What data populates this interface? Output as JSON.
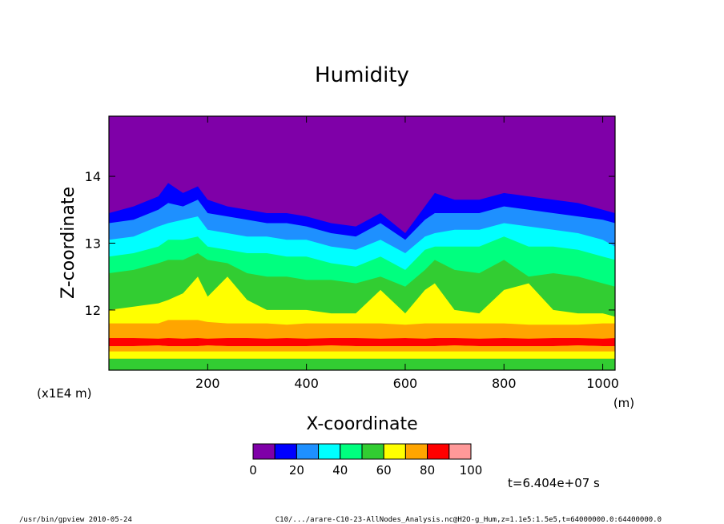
{
  "chart_data": {
    "type": "area",
    "title": "Humidity",
    "xlabel": "X-coordinate",
    "ylabel": "Z-coordinate",
    "x_unit": "(m)",
    "y_scale_note": "(x1E4 m)",
    "xlim": [
      0,
      1025
    ],
    "ylim": [
      11.1,
      14.9
    ],
    "x_ticks": [
      200,
      400,
      600,
      800,
      1000
    ],
    "y_ticks": [
      12,
      13,
      14
    ],
    "x_tick_labels": [
      "200",
      "400",
      "600",
      "800",
      "1000"
    ],
    "y_tick_labels": [
      "12",
      "13",
      "14"
    ],
    "colorbar": {
      "levels": [
        0,
        10,
        20,
        30,
        40,
        50,
        60,
        70,
        80,
        90,
        100
      ],
      "tick_labels": [
        "0",
        "20",
        "40",
        "60",
        "80",
        "100"
      ],
      "tick_values": [
        0,
        20,
        40,
        60,
        80,
        100
      ],
      "colors": [
        "#7f00a8",
        "#0000ff",
        "#1e90ff",
        "#00ffff",
        "#00ff7f",
        "#32cd32",
        "#ffff00",
        "#ffa500",
        "#ff0000",
        "#ff9999"
      ]
    },
    "contour_bounds": {
      "x": [
        0,
        50,
        100,
        120,
        150,
        180,
        200,
        240,
        280,
        320,
        360,
        400,
        450,
        500,
        550,
        600,
        640,
        660,
        700,
        750,
        800,
        850,
        900,
        950,
        1000,
        1025
      ],
      "level_10": [
        13.45,
        13.55,
        13.7,
        13.9,
        13.75,
        13.85,
        13.65,
        13.55,
        13.5,
        13.45,
        13.45,
        13.4,
        13.3,
        13.25,
        13.45,
        13.15,
        13.55,
        13.75,
        13.65,
        13.65,
        13.75,
        13.7,
        13.65,
        13.6,
        13.5,
        13.45
      ],
      "level_20": [
        13.3,
        13.35,
        13.5,
        13.6,
        13.55,
        13.65,
        13.45,
        13.4,
        13.35,
        13.3,
        13.3,
        13.25,
        13.15,
        13.1,
        13.3,
        13.05,
        13.35,
        13.45,
        13.45,
        13.45,
        13.55,
        13.5,
        13.45,
        13.4,
        13.35,
        13.3
      ],
      "level_30": [
        13.05,
        13.1,
        13.25,
        13.3,
        13.35,
        13.4,
        13.2,
        13.15,
        13.1,
        13.1,
        13.05,
        13.05,
        12.95,
        12.9,
        13.05,
        12.85,
        13.1,
        13.15,
        13.2,
        13.2,
        13.3,
        13.25,
        13.2,
        13.15,
        13.05,
        12.95
      ],
      "level_40": [
        12.8,
        12.85,
        12.95,
        13.05,
        13.05,
        13.1,
        12.95,
        12.9,
        12.85,
        12.85,
        12.8,
        12.8,
        12.7,
        12.65,
        12.8,
        12.6,
        12.9,
        12.95,
        12.95,
        12.95,
        13.1,
        12.95,
        12.95,
        12.9,
        12.8,
        12.75
      ],
      "level_50": [
        12.55,
        12.6,
        12.7,
        12.75,
        12.75,
        12.85,
        12.75,
        12.7,
        12.55,
        12.5,
        12.5,
        12.45,
        12.45,
        12.4,
        12.5,
        12.35,
        12.6,
        12.75,
        12.6,
        12.55,
        12.75,
        12.5,
        12.55,
        12.5,
        12.4,
        12.35
      ],
      "level_60": [
        12.0,
        12.05,
        12.1,
        12.15,
        12.25,
        12.5,
        12.2,
        12.5,
        12.15,
        12.0,
        12.0,
        12.0,
        11.95,
        11.95,
        12.3,
        11.95,
        12.3,
        12.4,
        12.0,
        11.95,
        12.3,
        12.4,
        12.0,
        11.95,
        11.95,
        11.9
      ],
      "level_70": [
        11.8,
        11.8,
        11.8,
        11.85,
        11.85,
        11.85,
        11.82,
        11.8,
        11.8,
        11.8,
        11.78,
        11.8,
        11.8,
        11.8,
        11.8,
        11.78,
        11.8,
        11.8,
        11.8,
        11.8,
        11.8,
        11.78,
        11.78,
        11.78,
        11.8,
        11.8
      ],
      "level_80_top": [
        11.58,
        11.58,
        11.57,
        11.58,
        11.57,
        11.58,
        11.57,
        11.58,
        11.58,
        11.57,
        11.58,
        11.57,
        11.58,
        11.58,
        11.57,
        11.58,
        11.57,
        11.58,
        11.58,
        11.57,
        11.58,
        11.57,
        11.58,
        11.58,
        11.57,
        11.58
      ],
      "level_80_bottom": [
        11.46,
        11.46,
        11.47,
        11.46,
        11.46,
        11.46,
        11.47,
        11.46,
        11.46,
        11.46,
        11.46,
        11.46,
        11.47,
        11.46,
        11.46,
        11.46,
        11.46,
        11.46,
        11.47,
        11.46,
        11.46,
        11.46,
        11.46,
        11.47,
        11.46,
        11.46
      ],
      "level_70_bottom": [
        11.38,
        11.38,
        11.38,
        11.38,
        11.38,
        11.38,
        11.38,
        11.38,
        11.38,
        11.38,
        11.38,
        11.38,
        11.38,
        11.38,
        11.38,
        11.38,
        11.38,
        11.38,
        11.38,
        11.38,
        11.38,
        11.38,
        11.38,
        11.38,
        11.38,
        11.38
      ],
      "level_60_bottom": [
        11.27,
        11.27,
        11.27,
        11.27,
        11.27,
        11.27,
        11.27,
        11.27,
        11.27,
        11.27,
        11.27,
        11.27,
        11.27,
        11.27,
        11.27,
        11.27,
        11.27,
        11.27,
        11.27,
        11.27,
        11.27,
        11.27,
        11.27,
        11.27,
        11.27,
        11.27
      ]
    },
    "time_label": "t=6.404e+07 s"
  },
  "footer": {
    "left": "/usr/bin/gpview   2010-05-24",
    "right": "C10/.../arare-C10-23-AllNodes_Analysis.nc@H2O-g_Hum,z=1.1e5:1.5e5,t=64000000.0:64400000.0"
  }
}
